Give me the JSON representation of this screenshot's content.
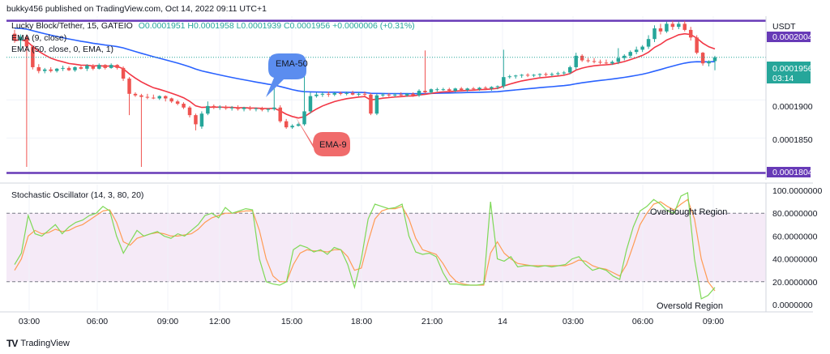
{
  "header": {
    "published": "bukky456 published on TradingView.com, Oct 14, 2022 09:11 UTC+1",
    "symbol": "Lucky Block/Tether, 15, GATEIO",
    "ohlc": "O0.0001951 H0.0001958 L0.0001939 C0.0001956 +0.0000006 (+0.31%)",
    "ema9_legend": "EMA (9, close)",
    "ema50_legend": "EMA (50, close, 0, EMA, 1)",
    "currency": "USDT",
    "colors": {
      "up": "#26a69a",
      "down": "#ef5350",
      "ema9": "#f23645",
      "ema50": "#2962ff",
      "level": "#673ab7",
      "stoch_k": "#7ed957",
      "stoch_d": "#ff9b54"
    }
  },
  "footer": {
    "brand": "TradingView",
    "logo": "TV"
  },
  "chart_data": [
    {
      "type": "candlestick",
      "y_ticks": [
        "0.0001900",
        "0.0001850"
      ],
      "ylim": [
        0.0001795,
        0.000201
      ],
      "x_ticks": [
        "03:00",
        "06:00",
        "09:00",
        "12:00",
        "15:00",
        "18:00",
        "21:00",
        "14",
        "03:00",
        "06:00",
        "09:00"
      ],
      "price_labels": {
        "top_level": "0.0002004",
        "bottom_level": "0.0001804",
        "last_price": "0.0001956",
        "countdown": "03:14"
      },
      "levels": [
        0.0002004,
        0.0001804
      ],
      "last_price": 0.0001956,
      "annotations": [
        {
          "text": "EMA-50",
          "color": "#5b8def"
        },
        {
          "text": "EMA-9",
          "color": "#f06b6b"
        }
      ],
      "candles": [
        [
          0.0001987,
          0.0001992,
          0.0001975,
          0.0001978
        ],
        [
          0.0001978,
          0.0001986,
          0.0001965,
          0.0001983
        ],
        [
          0.0001983,
          0.0001986,
          0.0001812,
          0.000197
        ],
        [
          0.000197,
          0.0001972,
          0.000194,
          0.0001943
        ],
        [
          0.0001943,
          0.0001947,
          0.0001935,
          0.0001938
        ],
        [
          0.0001938,
          0.0001942,
          0.0001935,
          0.000194
        ],
        [
          0.000194,
          0.0001943,
          0.0001936,
          0.0001938
        ],
        [
          0.0001938,
          0.0001942,
          0.0001936,
          0.0001941
        ],
        [
          0.0001941,
          0.0001945,
          0.0001938,
          0.0001942
        ],
        [
          0.0001942,
          0.0001944,
          0.0001938,
          0.0001939
        ],
        [
          0.0001939,
          0.0001944,
          0.0001937,
          0.0001943
        ],
        [
          0.0001943,
          0.0001946,
          0.000194,
          0.0001941
        ],
        [
          0.0001941,
          0.0001947,
          0.0001938,
          0.0001945
        ],
        [
          0.0001945,
          0.0001947,
          0.0001939,
          0.0001941
        ],
        [
          0.0001941,
          0.0001948,
          0.000194,
          0.0001946
        ],
        [
          0.0001946,
          0.0001947,
          0.000194,
          0.0001942
        ],
        [
          0.0001942,
          0.0001948,
          0.0001941,
          0.0001946
        ],
        [
          0.0001946,
          0.0001947,
          0.000194,
          0.0001942
        ],
        [
          0.0001942,
          0.0001944,
          0.0001925,
          0.0001928
        ],
        [
          0.0001928,
          0.000193,
          0.000188,
          0.0001908
        ],
        [
          0.0001908,
          0.000191,
          0.0001904,
          0.0001906
        ],
        [
          0.0001906,
          0.0001908,
          0.0001812,
          0.0001904
        ],
        [
          0.0001904,
          0.0001908,
          0.0001901,
          0.0001903
        ],
        [
          0.0001903,
          0.0001907,
          0.0001901,
          0.0001902
        ],
        [
          0.0001902,
          0.0001906,
          0.00019,
          0.0001905
        ],
        [
          0.0001905,
          0.0001906,
          0.0001898,
          0.0001902
        ],
        [
          0.0001902,
          0.0001903,
          0.0001896,
          0.0001898
        ],
        [
          0.0001898,
          0.00019,
          0.0001893,
          0.0001895
        ],
        [
          0.0001895,
          0.0001897,
          0.0001888,
          0.000189
        ],
        [
          0.000189,
          0.0001892,
          0.0001877,
          0.000188
        ],
        [
          0.000188,
          0.0001882,
          0.000186,
          0.0001868
        ],
        [
          0.0001865,
          0.0001885,
          0.0001862,
          0.0001882
        ],
        [
          0.0001882,
          0.0001898,
          0.000188,
          0.0001892
        ],
        [
          0.0001892,
          0.0001894,
          0.0001888,
          0.000189
        ],
        [
          0.000189,
          0.0001893,
          0.0001887,
          0.0001891
        ],
        [
          0.0001891,
          0.0001893,
          0.0001887,
          0.0001889
        ],
        [
          0.0001889,
          0.0001892,
          0.0001886,
          0.000189
        ],
        [
          0.000189,
          0.0001893,
          0.0001886,
          0.0001888
        ],
        [
          0.0001888,
          0.0001891,
          0.0001885,
          0.000189
        ],
        [
          0.000189,
          0.0001892,
          0.0001886,
          0.0001888
        ],
        [
          0.0001888,
          0.000189,
          0.0001885,
          0.0001889
        ],
        [
          0.0001889,
          0.0001891,
          0.0001885,
          0.0001887
        ],
        [
          0.0001887,
          0.0001889,
          0.0001884,
          0.0001888
        ],
        [
          0.0001888,
          0.0001925,
          0.0001886,
          0.000189
        ],
        [
          0.000189,
          0.0001893,
          0.000187,
          0.0001872
        ],
        [
          0.0001872,
          0.0001875,
          0.0001862,
          0.0001864
        ],
        [
          0.0001864,
          0.0001868,
          0.0001862,
          0.0001866
        ],
        [
          0.0001866,
          0.000187,
          0.0001865,
          0.0001868
        ],
        [
          0.0001868,
          0.000195,
          0.0001866,
          0.0001885
        ],
        [
          0.0001885,
          0.000191,
          0.0001882,
          0.0001905
        ],
        [
          0.0001905,
          0.000191,
          0.0001903,
          0.0001907
        ],
        [
          0.0001907,
          0.000191,
          0.0001904,
          0.0001908
        ],
        [
          0.0001908,
          0.0001911,
          0.0001904,
          0.0001907
        ],
        [
          0.0001907,
          0.000191,
          0.0001905,
          0.0001909
        ],
        [
          0.0001909,
          0.0001911,
          0.0001906,
          0.0001908
        ],
        [
          0.0001908,
          0.0001911,
          0.0001906,
          0.0001909
        ],
        [
          0.0001909,
          0.0001912,
          0.0001906,
          0.0001907
        ],
        [
          0.0001907,
          0.000191,
          0.0001905,
          0.0001908
        ],
        [
          0.0001908,
          0.0001911,
          0.0001905,
          0.0001907
        ],
        [
          0.0001907,
          0.0001909,
          0.000188,
          0.0001882
        ],
        [
          0.0001882,
          0.0001908,
          0.000188,
          0.0001906
        ],
        [
          0.0001906,
          0.0001909,
          0.0001904,
          0.0001907
        ],
        [
          0.0001907,
          0.0001909,
          0.0001904,
          0.0001906
        ],
        [
          0.0001906,
          0.0001909,
          0.0001904,
          0.0001907
        ],
        [
          0.0001907,
          0.000191,
          0.0001904,
          0.0001906
        ],
        [
          0.0001906,
          0.0001909,
          0.0001904,
          0.0001908
        ],
        [
          0.0001908,
          0.000191,
          0.0001904,
          0.0001906
        ],
        [
          0.0001906,
          0.0001914,
          0.0001904,
          0.0001912
        ],
        [
          0.0001912,
          0.0001965,
          0.0001908,
          0.000191
        ],
        [
          0.000191,
          0.0001915,
          0.0001908,
          0.0001914
        ],
        [
          0.0001914,
          0.0001916,
          0.0001911,
          0.0001914
        ],
        [
          0.0001914,
          0.0001916,
          0.0001912,
          0.0001914
        ],
        [
          0.0001914,
          0.0001916,
          0.0001911,
          0.0001912
        ],
        [
          0.0001912,
          0.0001916,
          0.000191,
          0.0001915
        ],
        [
          0.0001915,
          0.0001917,
          0.0001911,
          0.0001913
        ],
        [
          0.0001913,
          0.0001916,
          0.0001911,
          0.0001915
        ],
        [
          0.0001915,
          0.0001917,
          0.0001912,
          0.0001914
        ],
        [
          0.0001914,
          0.0001917,
          0.0001912,
          0.0001916
        ],
        [
          0.0001916,
          0.0001918,
          0.0001913,
          0.0001915
        ],
        [
          0.0001915,
          0.0001918,
          0.0001912,
          0.0001917
        ],
        [
          0.0001917,
          0.0001919,
          0.0001914,
          0.0001918
        ],
        [
          0.0001918,
          0.0001966,
          0.0001915,
          0.000193
        ],
        [
          0.000193,
          0.0001933,
          0.0001928,
          0.0001931
        ],
        [
          0.0001931,
          0.0001933,
          0.0001928,
          0.0001932
        ],
        [
          0.0001932,
          0.0001934,
          0.0001929,
          0.0001933
        ],
        [
          0.0001933,
          0.0001935,
          0.000193,
          0.0001932
        ],
        [
          0.0001932,
          0.0001934,
          0.000193,
          0.0001933
        ],
        [
          0.0001933,
          0.0001935,
          0.000193,
          0.0001934
        ],
        [
          0.0001934,
          0.0001936,
          0.0001931,
          0.0001933
        ],
        [
          0.0001933,
          0.0001936,
          0.0001931,
          0.0001934
        ],
        [
          0.0001934,
          0.0001937,
          0.0001932,
          0.0001935
        ],
        [
          0.0001935,
          0.0001938,
          0.0001933,
          0.0001936
        ],
        [
          0.0001936,
          0.0001945,
          0.0001934,
          0.0001943
        ],
        [
          0.0001943,
          0.0001962,
          0.000194,
          0.0001958
        ],
        [
          0.0001958,
          0.000196,
          0.000195,
          0.0001952
        ],
        [
          0.0001952,
          0.0001955,
          0.0001949,
          0.0001951
        ],
        [
          0.0001951,
          0.0001955,
          0.0001948,
          0.000195
        ],
        [
          0.000195,
          0.0001953,
          0.0001947,
          0.0001949
        ],
        [
          0.0001949,
          0.0001953,
          0.0001946,
          0.0001948
        ],
        [
          0.0001948,
          0.0001952,
          0.0001946,
          0.000195
        ],
        [
          0.000195,
          0.0001968,
          0.0001947,
          0.0001955
        ],
        [
          0.0001955,
          0.000196,
          0.0001952,
          0.0001958
        ],
        [
          0.0001958,
          0.0001965,
          0.0001955,
          0.0001963
        ],
        [
          0.0001963,
          0.000197,
          0.000196,
          0.0001966
        ],
        [
          0.0001966,
          0.0001972,
          0.0001963,
          0.000197
        ],
        [
          0.000197,
          0.0001985,
          0.0001967,
          0.000198
        ],
        [
          0.000198,
          0.0001998,
          0.0001976,
          0.0001994
        ],
        [
          0.0001994,
          0.0002,
          0.0001986,
          0.000199
        ],
        [
          0.000199,
          0.0002003,
          0.0001988,
          0.0002
        ],
        [
          0.0002,
          0.0002004,
          0.0001992,
          0.0001996
        ],
        [
          0.0001996,
          0.0002003,
          0.0001993,
          0.0002
        ],
        [
          0.0002,
          0.0002004,
          0.000199,
          0.0001992
        ],
        [
          0.0001992,
          0.0001996,
          0.0001978,
          0.0001982
        ],
        [
          0.0001982,
          0.0001985,
          0.000196,
          0.0001962
        ],
        [
          0.0001962,
          0.0001963,
          0.0001945,
          0.0001948
        ],
        [
          0.0001948,
          0.0001952,
          0.0001944,
          0.0001951
        ],
        [
          0.0001951,
          0.0001958,
          0.0001939,
          0.0001956
        ]
      ]
    },
    {
      "type": "line",
      "title": "Stochastic Oscillator (14, 3, 80, 20)",
      "ylim": [
        -5,
        105
      ],
      "y_ticks": [
        "100.0000000",
        "80.0000000",
        "60.0000000",
        "40.0000000",
        "20.0000000",
        "0.0000000"
      ],
      "bands": [
        20,
        80
      ],
      "annotations": [
        "Overbought Region",
        "Oversold Region"
      ],
      "series": [
        {
          "values": [
            35,
            45,
            78,
            62,
            60,
            65,
            70,
            62,
            68,
            72,
            74,
            78,
            80,
            86,
            82,
            60,
            45,
            55,
            65,
            60,
            62,
            64,
            60,
            58,
            62,
            60,
            65,
            70,
            78,
            80,
            76,
            85,
            80,
            82,
            84,
            83,
            40,
            20,
            18,
            17,
            20,
            48,
            52,
            50,
            46,
            48,
            44,
            50,
            48,
            35,
            15,
            40,
            75,
            88,
            86,
            84,
            85,
            88,
            60,
            46,
            44,
            45,
            42,
            28,
            18,
            18,
            17,
            17,
            17,
            18,
            90,
            40,
            38,
            42,
            33,
            34,
            34,
            33,
            34,
            33,
            34,
            35,
            40,
            42,
            35,
            30,
            32,
            30,
            25,
            22,
            48,
            68,
            82,
            86,
            92,
            88,
            82,
            80,
            95,
            98,
            40,
            5,
            8,
            15
          ]
        },
        {
          "values": [
            30,
            40,
            60,
            65,
            62,
            63,
            66,
            64,
            65,
            68,
            70,
            74,
            78,
            82,
            83,
            72,
            55,
            52,
            58,
            60,
            62,
            63,
            62,
            60,
            60,
            61,
            62,
            66,
            72,
            76,
            78,
            80,
            80,
            81,
            82,
            82,
            65,
            40,
            25,
            20,
            20,
            35,
            45,
            48,
            47,
            47,
            46,
            48,
            48,
            42,
            30,
            32,
            55,
            75,
            82,
            84,
            84,
            86,
            75,
            58,
            48,
            46,
            44,
            36,
            26,
            20,
            18,
            17,
            17,
            17,
            45,
            55,
            45,
            40,
            36,
            35,
            34,
            34,
            34,
            34,
            34,
            34,
            36,
            39,
            38,
            34,
            32,
            31,
            28,
            25,
            35,
            52,
            70,
            80,
            88,
            90,
            86,
            83,
            88,
            92,
            75,
            40,
            20,
            12
          ]
        }
      ]
    }
  ]
}
